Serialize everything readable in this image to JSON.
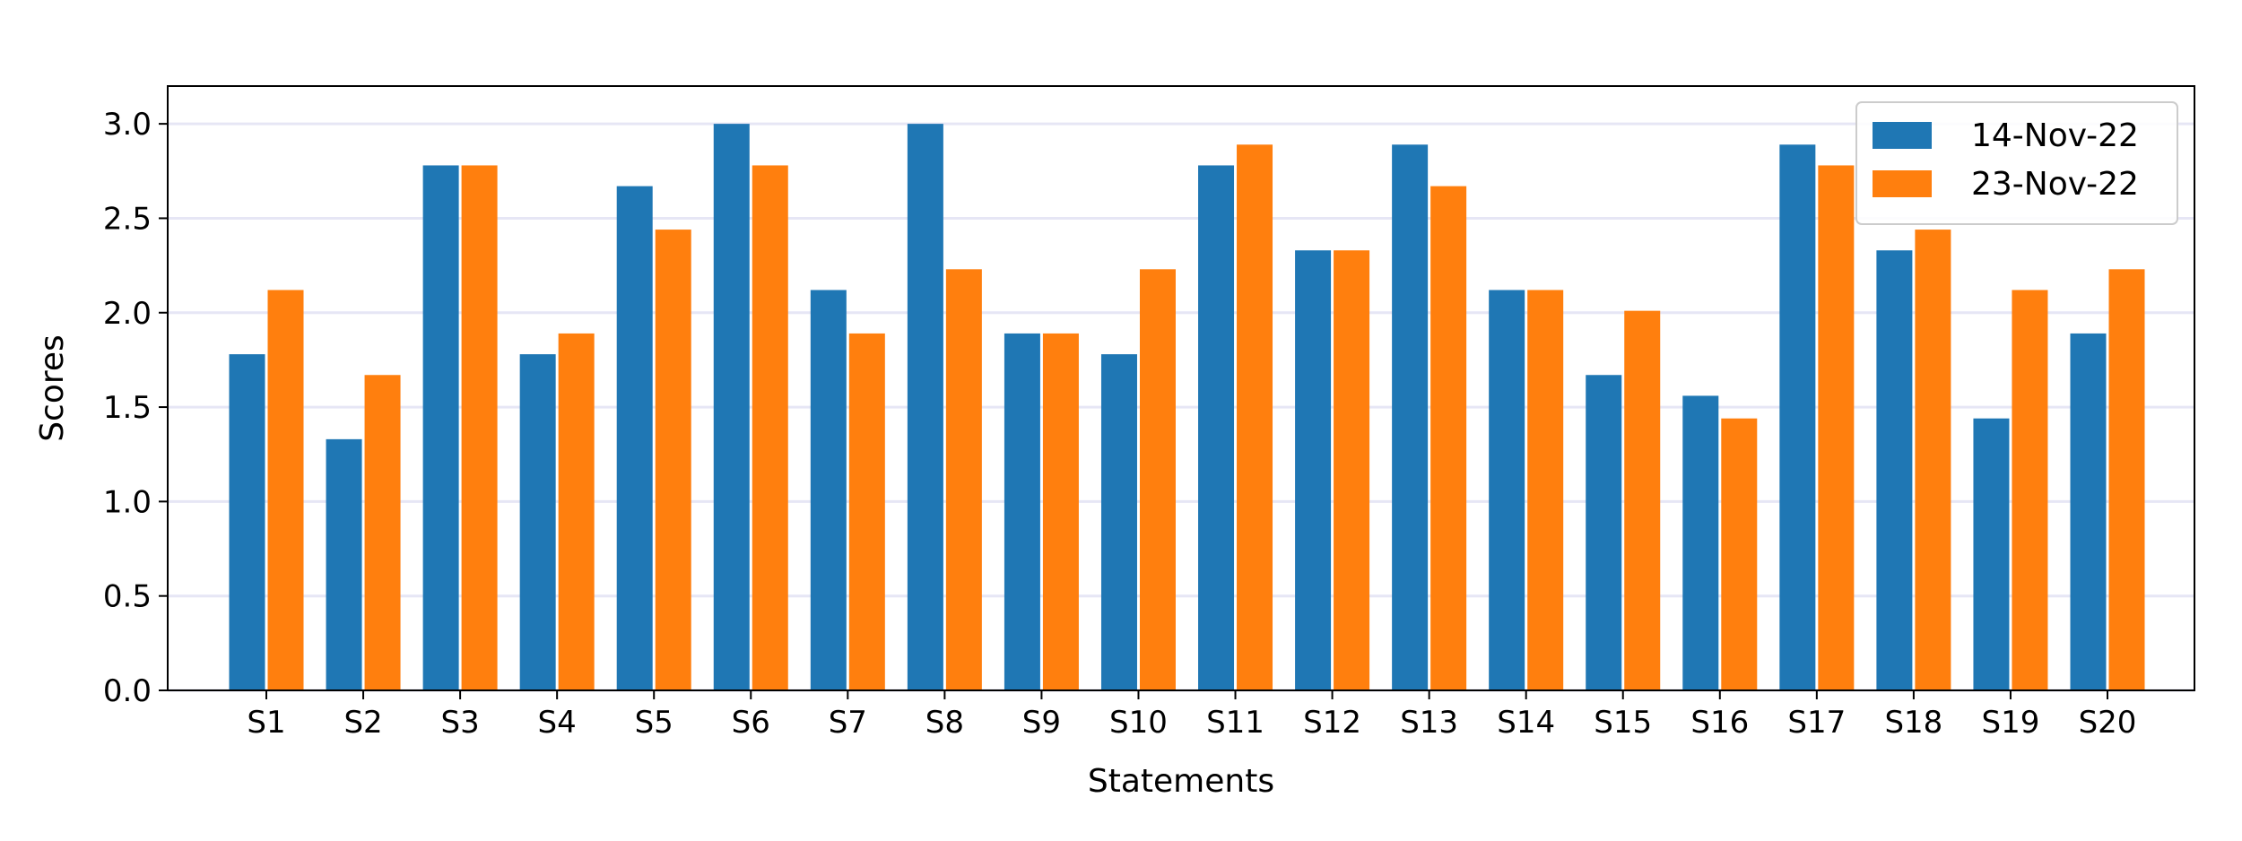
{
  "chart_data": {
    "type": "bar",
    "title": "",
    "xlabel": "Statements",
    "ylabel": "Scores",
    "ylim": [
      0,
      3.2
    ],
    "yticks": [
      0.0,
      0.5,
      1.0,
      1.5,
      2.0,
      2.5,
      3.0
    ],
    "ytick_labels": [
      "0.0",
      "0.5",
      "1.0",
      "1.5",
      "2.0",
      "2.5",
      "3.0"
    ],
    "grid": "horizontal, light",
    "legend_position": "top-right",
    "categories": [
      "S1",
      "S2",
      "S3",
      "S4",
      "S5",
      "S6",
      "S7",
      "S8",
      "S9",
      "S10",
      "S11",
      "S12",
      "S13",
      "S14",
      "S15",
      "S16",
      "S17",
      "S18",
      "S19",
      "S20"
    ],
    "series": [
      {
        "name": "14-Nov-22",
        "color": "#1f77b4",
        "values": [
          1.78,
          1.33,
          2.78,
          1.78,
          2.67,
          3.0,
          2.12,
          3.0,
          1.89,
          1.78,
          2.78,
          2.33,
          2.89,
          2.12,
          1.67,
          1.56,
          2.89,
          2.33,
          1.44,
          1.89
        ]
      },
      {
        "name": "23-Nov-22",
        "color": "#ff7f0e",
        "values": [
          2.12,
          1.67,
          2.78,
          1.89,
          2.44,
          2.78,
          1.89,
          2.23,
          1.89,
          2.23,
          2.89,
          2.33,
          2.67,
          2.12,
          2.01,
          1.44,
          2.78,
          2.44,
          2.12,
          2.23
        ]
      }
    ]
  }
}
